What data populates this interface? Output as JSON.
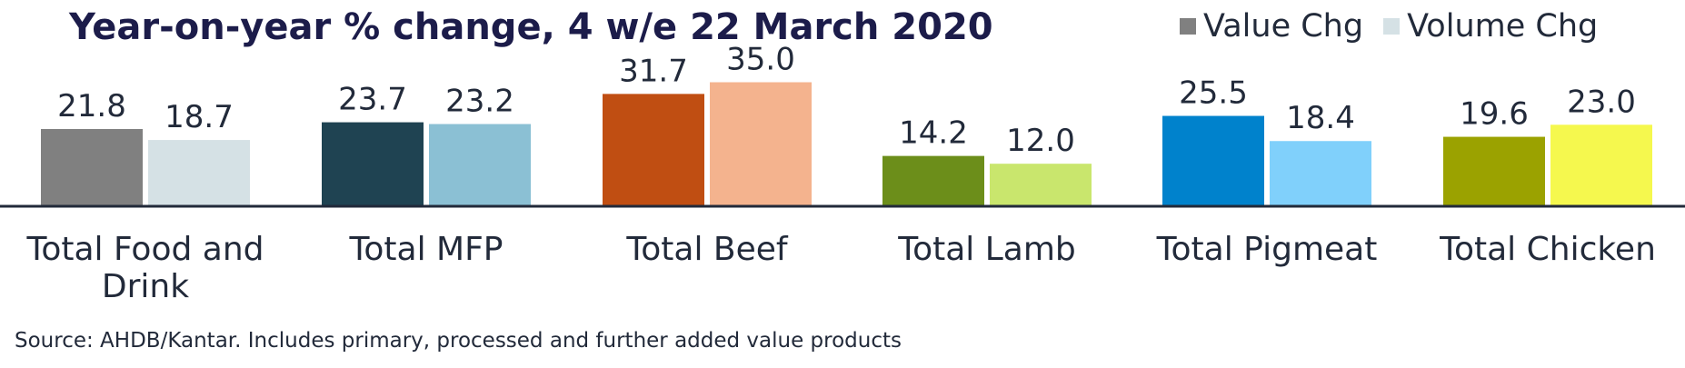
{
  "title": "Year-on-year % change, 4 w/e 22 March 2020",
  "legend": {
    "items": [
      {
        "label": "Value Chg",
        "color": "#808080"
      },
      {
        "label": "Volume Chg",
        "color": "#d5e1e5"
      }
    ]
  },
  "source": "Source: AHDB/Kantar. Includes primary, processed and further added value products",
  "chart_data": {
    "type": "bar",
    "title": "Year-on-year % change, 4 w/e 22 March 2020",
    "categories": [
      [
        "Total Food and",
        "Drink"
      ],
      [
        "Total MFP"
      ],
      [
        "Total Beef"
      ],
      [
        "Total Lamb"
      ],
      [
        "Total Pigmeat"
      ],
      [
        "Total Chicken"
      ]
    ],
    "series": [
      {
        "name": "Value Chg",
        "values": [
          21.8,
          23.7,
          31.7,
          14.2,
          25.5,
          19.6
        ]
      },
      {
        "name": "Volume Chg",
        "values": [
          18.7,
          23.2,
          35.0,
          12.0,
          18.4,
          23.0
        ]
      }
    ],
    "bar_colors": [
      [
        "#808080",
        "#d5e1e5"
      ],
      [
        "#1f4352",
        "#8bc0d4"
      ],
      [
        "#c04e12",
        "#f4b38e"
      ],
      [
        "#6c8e1a",
        "#c9e66d"
      ],
      [
        "#0082cc",
        "#80d0fb"
      ],
      [
        "#9ba200",
        "#f5f84e"
      ]
    ],
    "value_labels": true,
    "xlabel": "",
    "ylabel": "",
    "ylim": [
      0,
      35
    ],
    "grid": false,
    "legend_position": "top-right"
  }
}
